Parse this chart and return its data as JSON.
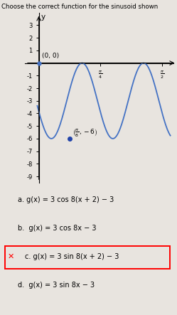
{
  "title": "Choose the correct function for the sinusoid shown",
  "curve_color": "#4472C4",
  "background_color": "#e8e4df",
  "ylim": [
    -9.5,
    4.0
  ],
  "xlim": [
    -0.18,
    1.72
  ],
  "amplitude": 3,
  "vertical_shift": -3,
  "B": 8,
  "phase_shift": 2,
  "x_ticks": [
    0.7853981633974483,
    1.5707963267948966
  ],
  "y_ticks": [
    -9,
    -8,
    -7,
    -6,
    -5,
    -4,
    -3,
    -2,
    -1,
    1,
    2,
    3
  ],
  "options": [
    "a. g(x) = 3 cos 8(x + 2) − 3",
    "b.  g(x) = 3 cos 8x − 3",
    "c. g(x) = 3 sin 8(x + 2) − 3",
    "d.  g(x) = 3 sin 8x − 3"
  ],
  "correct_option_index": 2
}
